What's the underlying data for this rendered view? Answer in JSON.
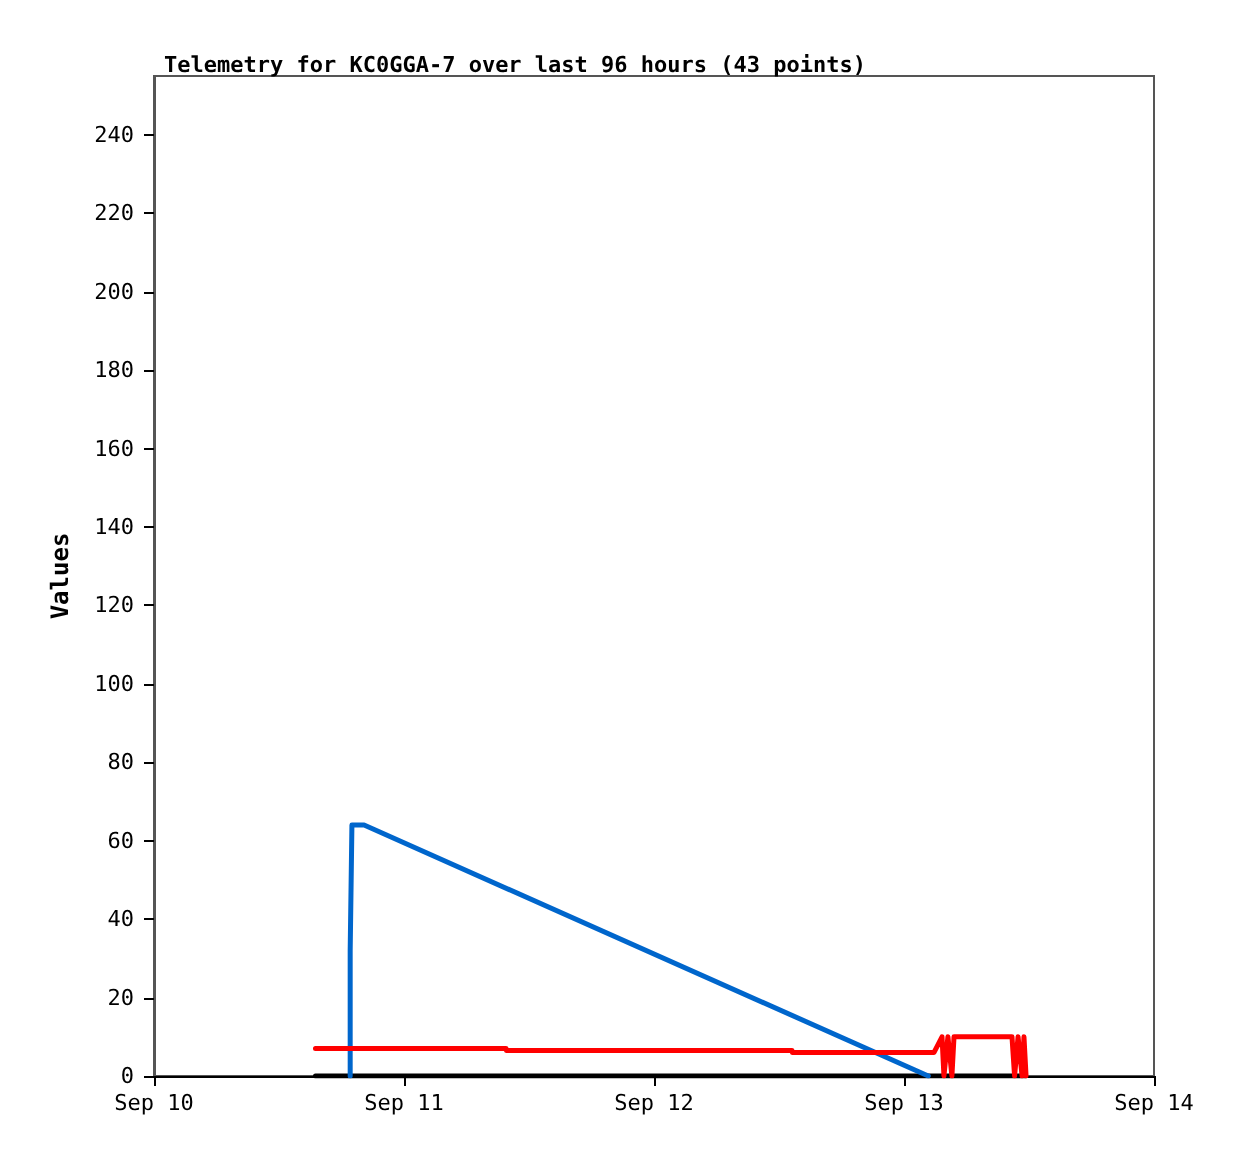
{
  "chart_data": {
    "type": "line",
    "title": "Telemetry for KC0GGA-7 over last 96 hours (43 points)",
    "ylabel": "Values",
    "series": [
      {
        "color": "#000000",
        "x": [
          "--09-10T15:30",
          "--09-13T11:40"
        ],
        "values": [
          0,
          0
        ]
      },
      {
        "color": "#0066cc",
        "x": [
          "--09-10T18:50",
          "--09-10T18:50",
          "--09-10T19:00",
          "--09-10T20:10",
          "--09-13T02:20"
        ],
        "values": [
          0,
          32,
          64,
          64,
          0
        ]
      },
      {
        "color": "#ff0000",
        "x": [
          "--09-10T15:30",
          "--09-11T09:48",
          "--09-11T09:50",
          "--09-12T13:15",
          "--09-12T13:17",
          "--09-13T02:53",
          "--09-13T03:39",
          "--09-13T03:50",
          "--09-13T04:13",
          "--09-13T04:36",
          "--09-13T04:48",
          "--09-13T10:22",
          "--09-13T10:37",
          "--09-13T10:57",
          "--09-13T11:20",
          "--09-13T11:31",
          "--09-13T11:43"
        ],
        "values": [
          7,
          7,
          6.5,
          6.5,
          6,
          6,
          10,
          0,
          10,
          0,
          10,
          10,
          0,
          10,
          0,
          10,
          0
        ]
      }
    ],
    "xlim": [
      "--09-10",
      "--09-14"
    ],
    "xticks": [
      {
        "value": "--09-10",
        "label": "Sep 10"
      },
      {
        "value": "--09-11",
        "label": "Sep 11"
      },
      {
        "value": "--09-12",
        "label": "Sep 12"
      },
      {
        "value": "--09-13",
        "label": "Sep 13"
      },
      {
        "value": "--09-14",
        "label": "Sep 14"
      }
    ],
    "ylim": [
      0,
      255
    ],
    "yticks": [
      0,
      20,
      40,
      60,
      80,
      100,
      120,
      140,
      160,
      180,
      200,
      220,
      240
    ],
    "grid": false,
    "marker": "none",
    "line_style": "solid"
  }
}
